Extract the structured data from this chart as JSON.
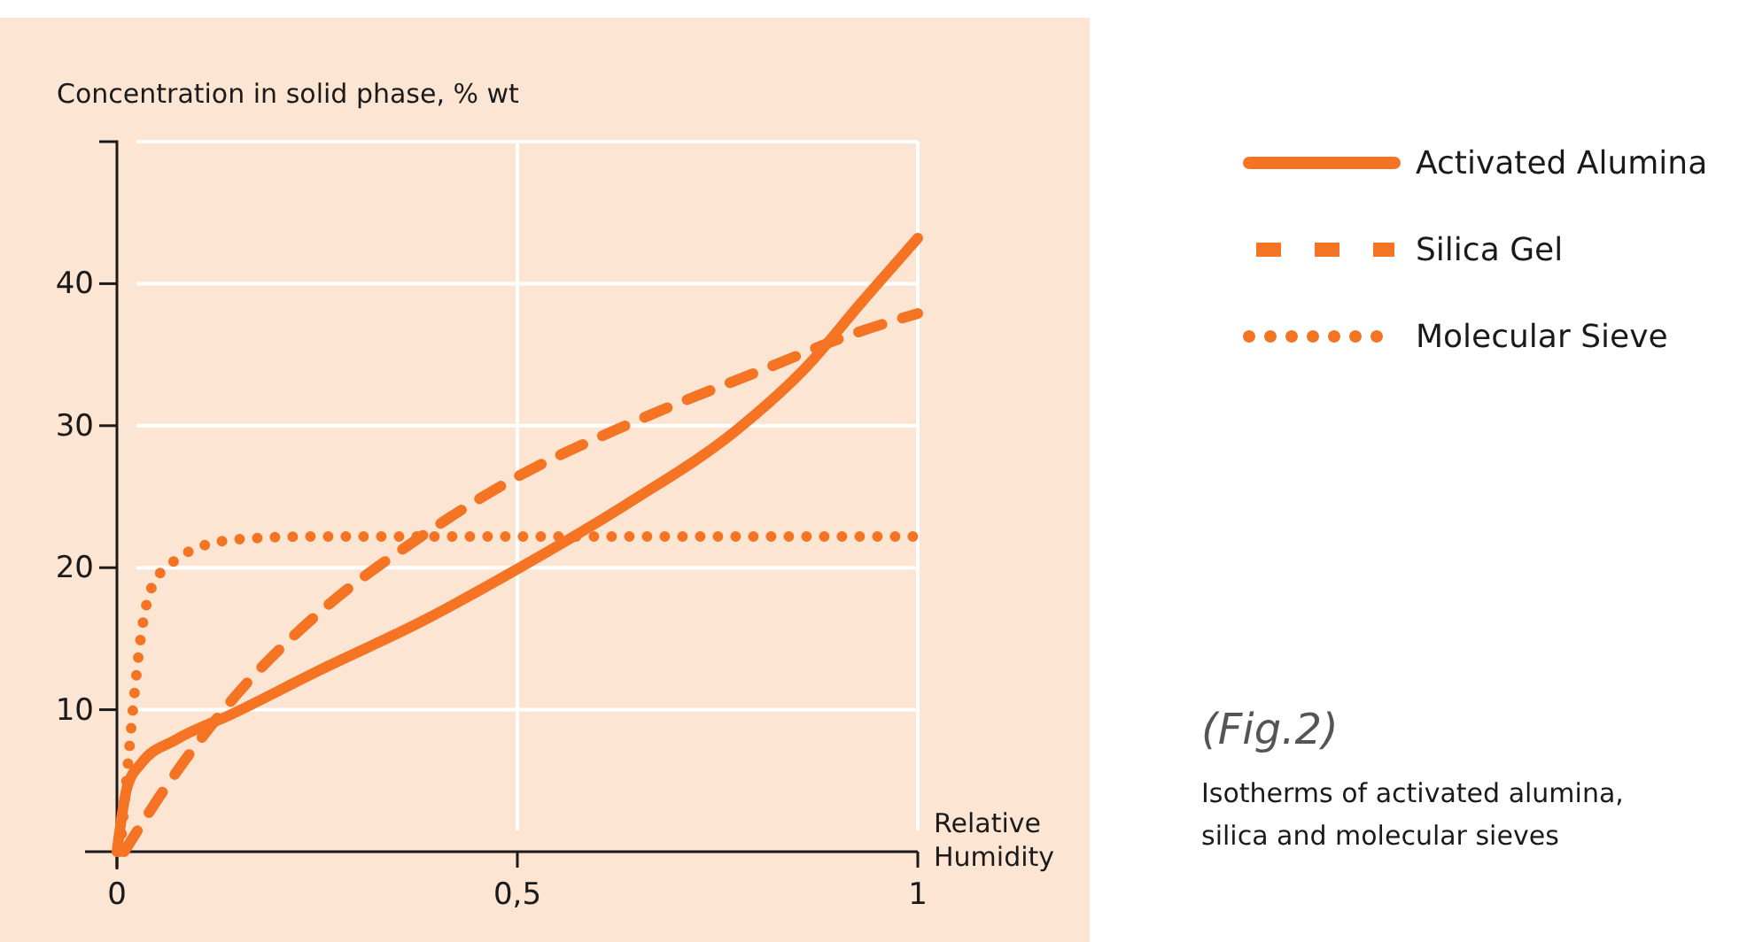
{
  "chart_data": {
    "type": "line",
    "ylabel": "Concentration in solid phase, % wt",
    "xlabel": "Relative Humidity",
    "xlim": [
      0,
      1
    ],
    "xticks": [
      0,
      {
        "value": 0.5,
        "label": "0,5"
      },
      1
    ],
    "ylim": [
      0,
      50
    ],
    "yticks": [
      10,
      20,
      30,
      40
    ],
    "grid": true,
    "legend": "top right",
    "marker": "none",
    "series": [
      {
        "name": "Activated Alumina",
        "color": "#f47424",
        "line_style": "solid",
        "x": [
          0,
          0.013,
          0.03,
          0.074,
          0.144,
          0.25,
          0.38,
          0.5,
          0.643,
          0.774,
          0.862,
          0.93,
          1
        ],
        "values": [
          0,
          4.6,
          6.2,
          7.9,
          9.7,
          12.7,
          16.2,
          19.9,
          24.7,
          29.7,
          34.2,
          38.7,
          43.2
        ]
      },
      {
        "name": "Silica Gel",
        "color": "#f47424",
        "line_style": "dashed",
        "x": [
          0.009,
          0.057,
          0.144,
          0.25,
          0.38,
          0.5,
          0.643,
          0.818,
          0.906,
          1
        ],
        "values": [
          0,
          4.2,
          10.7,
          16.7,
          22.2,
          26.4,
          30.2,
          34.2,
          36.2,
          37.9
        ]
      },
      {
        "name": "Molecular Sieve",
        "color": "#f47424",
        "line_style": "dotted",
        "x": [
          0.004,
          0.013,
          0.022,
          0.03,
          0.044,
          0.066,
          0.092,
          0.153,
          0.25,
          1
        ],
        "values": [
          0,
          5.7,
          11.2,
          15.2,
          18.7,
          20.2,
          21.2,
          22,
          22.2,
          22.2
        ]
      }
    ],
    "annotations": [
      "(Fig.2)",
      "Isotherms of activated alumina, silica and molecular sieves"
    ]
  }
}
